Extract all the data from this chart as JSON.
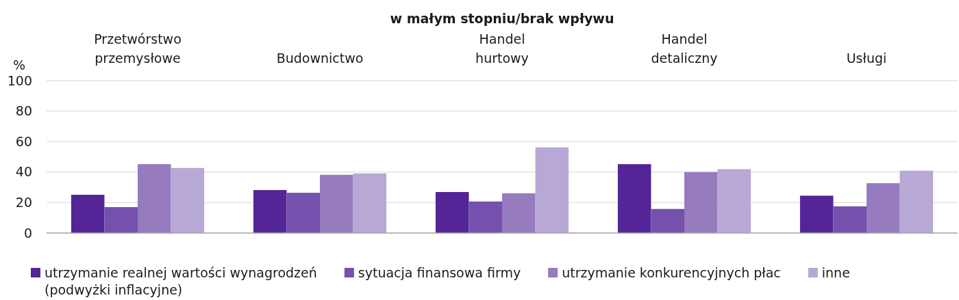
{
  "chart_data": {
    "type": "bar",
    "title": "w małym stopniu/brak wpływu",
    "ylabel": "%",
    "categories": [
      "Przetwórstwo przemysłowe",
      "Budownictwo",
      "Handel hurtowy",
      "Handel detaliczny",
      "Usługi"
    ],
    "series": [
      {
        "name": "utrzymanie realnej wartości wynagrodzeń (podwyżki inflacyjne)",
        "color": "#532597",
        "values": [
          25.1,
          28.2,
          26.9,
          45.2,
          24.5
        ]
      },
      {
        "name": "sytuacja finansowa firmy",
        "color": "#7550ac",
        "values": [
          17.0,
          26.4,
          20.7,
          15.8,
          17.5
        ]
      },
      {
        "name": "utrzymanie konkurencyjnych płac",
        "color": "#967bbf",
        "values": [
          45.2,
          38.2,
          26.1,
          40.0,
          32.7
        ]
      },
      {
        "name": "inne",
        "color": "#b8a8d5",
        "values": [
          42.7,
          39.1,
          56.2,
          41.9,
          40.9
        ]
      }
    ],
    "ylim": [
      0,
      100
    ],
    "yticks": [
      0,
      20,
      40,
      60,
      80,
      100
    ],
    "grid": "y",
    "legend": "bottom"
  }
}
